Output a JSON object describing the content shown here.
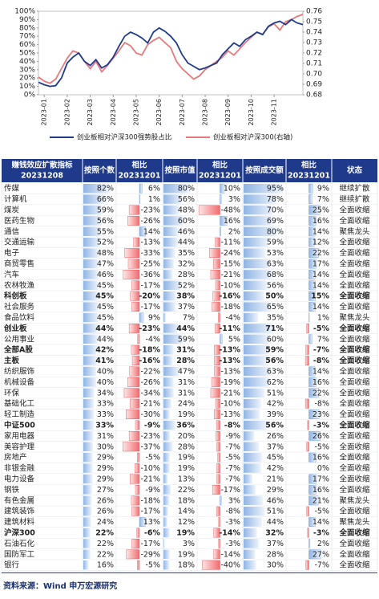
{
  "chart_data": {
    "type": "line",
    "categories": [
      null,
      "2023-01",
      null,
      null,
      null,
      "2023-02",
      null,
      null,
      null,
      "2023-03",
      null,
      null,
      null,
      "2023-04",
      null,
      null,
      null,
      "2023-05",
      null,
      null,
      null,
      "2023-06",
      null,
      null,
      null,
      "2023-07",
      null,
      null,
      null,
      "2023-08",
      null,
      null,
      null,
      "2023-09",
      null,
      null,
      null,
      "2023-10",
      null,
      null,
      null,
      "2023-11",
      null,
      null,
      null,
      null,
      null
    ],
    "series": [
      {
        "name": "创业板相对沪深300强势股占比",
        "color": "#1f3a8a",
        "values": [
          15,
          12,
          10,
          11,
          20,
          38,
          45,
          50,
          40,
          35,
          42,
          32,
          36,
          45,
          58,
          70,
          75,
          72,
          68,
          62,
          75,
          80,
          76,
          70,
          62,
          48,
          38,
          34,
          30,
          32,
          35,
          38,
          48,
          55,
          62,
          58,
          66,
          70,
          75,
          72,
          82,
          86,
          88,
          84,
          90,
          86,
          84
        ]
      },
      {
        "name": "创业板相对沪深300(右轴)",
        "color": "#e8787a",
        "axis": "y2",
        "values": [
          0.697,
          0.693,
          0.691,
          0.695,
          0.705,
          0.715,
          0.722,
          0.72,
          0.712,
          0.705,
          0.712,
          0.702,
          0.708,
          0.715,
          0.722,
          0.73,
          0.727,
          0.72,
          0.718,
          0.728,
          0.732,
          0.735,
          0.73,
          0.725,
          0.712,
          0.705,
          0.7,
          0.695,
          0.698,
          0.704,
          0.708,
          0.712,
          0.716,
          0.722,
          0.718,
          0.724,
          0.73,
          0.735,
          0.74,
          0.738,
          0.745,
          0.748,
          0.742,
          0.75,
          0.752,
          0.755,
          0.757
        ]
      }
    ],
    "ylim": [
      0,
      100
    ],
    "yticks": [
      {
        "value": 0,
        "label": "0%"
      },
      {
        "value": 10,
        "label": "10%"
      },
      {
        "value": 20,
        "label": "20%"
      },
      {
        "value": 30,
        "label": "30%"
      },
      {
        "value": 40,
        "label": "40%"
      },
      {
        "value": 50,
        "label": "50%"
      },
      {
        "value": 60,
        "label": "60%"
      },
      {
        "value": 70,
        "label": "70%"
      },
      {
        "value": 80,
        "label": "80%"
      },
      {
        "value": 90,
        "label": "90%"
      },
      {
        "value": 100,
        "label": "100%"
      }
    ],
    "y2lim": [
      0.68,
      0.76
    ],
    "y2ticks": [
      0.68,
      0.69,
      {
        "value": 0.7,
        "label": "0.70"
      },
      0.71,
      0.72,
      0.73,
      0.74,
      0.75,
      0.76
    ],
    "legend": "bottom"
  },
  "table": {
    "header": [
      [
        "赚钱效应扩散指标",
        "20231208"
      ],
      [
        "按照个数"
      ],
      [
        "相比",
        "20231201"
      ],
      [
        "按照市值"
      ],
      [
        "相比",
        "20231201"
      ],
      [
        "按照成交额"
      ],
      [
        "相比",
        "20231201"
      ],
      [
        "状态"
      ]
    ],
    "rows": [
      {
        "cells": [
          "传媒",
          "82%",
          "6%",
          "80%",
          "10%",
          "95%",
          "9%",
          "继续扩散"
        ]
      },
      {
        "cells": [
          "计算机",
          "66%",
          "1%",
          "56%",
          "3%",
          "78%",
          "7%",
          "继续扩散"
        ]
      },
      {
        "cells": [
          "煤炭",
          "59%",
          "-23%",
          "48%",
          "-48%",
          "70%",
          "25%",
          "全面收缩"
        ]
      },
      {
        "cells": [
          "医药生物",
          "56%",
          "-26%",
          "60%",
          "16%",
          "69%",
          "16%",
          "全面收缩"
        ]
      },
      {
        "cells": [
          "通信",
          "55%",
          "14%",
          "46%",
          "2%",
          "80%",
          "14%",
          "聚焦龙头"
        ]
      },
      {
        "cells": [
          "交通运输",
          "52%",
          "-13%",
          "44%",
          "-11%",
          "59%",
          "12%",
          "全面收缩"
        ]
      },
      {
        "cells": [
          "电子",
          "48%",
          "-33%",
          "35%",
          "-24%",
          "53%",
          "22%",
          "全面收缩"
        ]
      },
      {
        "cells": [
          "商贸零售",
          "47%",
          "-25%",
          "32%",
          "-15%",
          "63%",
          "17%",
          "全面收缩"
        ]
      },
      {
        "cells": [
          "汽车",
          "46%",
          "-36%",
          "28%",
          "-21%",
          "68%",
          "14%",
          "全面收缩"
        ]
      },
      {
        "cells": [
          "农林牧渔",
          "45%",
          "-17%",
          "52%",
          "-10%",
          "56%",
          "14%",
          "全面收缩"
        ]
      },
      {
        "cells": [
          "科创板",
          "45%",
          "-20%",
          "38%",
          "-16%",
          "50%",
          "15%",
          "全面收缩"
        ],
        "bold": true
      },
      {
        "cells": [
          "社会服务",
          "45%",
          "-17%",
          "37%",
          "-18%",
          "65%",
          "14%",
          "全面收缩"
        ]
      },
      {
        "cells": [
          "食品饮料",
          "45%",
          "9%",
          "7%",
          "-4%",
          "35%",
          "1%",
          "聚焦龙头"
        ]
      },
      {
        "cells": [
          "创业板",
          "44%",
          "-23%",
          "44%",
          "-11%",
          "71%",
          "-5%",
          "全面收缩"
        ],
        "bold": true
      },
      {
        "cells": [
          "公用事业",
          "44%",
          "-4%",
          "59%",
          "5%",
          "60%",
          "7%",
          "全面收缩"
        ]
      },
      {
        "cells": [
          "全部A股",
          "42%",
          "-18%",
          "31%",
          "-13%",
          "59%",
          "-7%",
          "全面收缩"
        ],
        "bold": true
      },
      {
        "cells": [
          "主板",
          "41%",
          "-16%",
          "28%",
          "-13%",
          "56%",
          "-8%",
          "全面收缩"
        ],
        "bold": true
      },
      {
        "cells": [
          "纺织服饰",
          "40%",
          "-22%",
          "47%",
          "-13%",
          "63%",
          "14%",
          "全面收缩"
        ]
      },
      {
        "cells": [
          "机械设备",
          "40%",
          "-26%",
          "31%",
          "-19%",
          "62%",
          "16%",
          "全面收缩"
        ]
      },
      {
        "cells": [
          "环保",
          "34%",
          "-34%",
          "31%",
          "-21%",
          "51%",
          "22%",
          "全面收缩"
        ]
      },
      {
        "cells": [
          "基础化工",
          "33%",
          "-21%",
          "24%",
          "-10%",
          "42%",
          "-8%",
          "全面收缩"
        ]
      },
      {
        "cells": [
          "轻工制造",
          "33%",
          "-30%",
          "19%",
          "-13%",
          "39%",
          "23%",
          "全面收缩"
        ]
      },
      {
        "cells": [
          "中证500",
          "33%",
          "-9%",
          "36%",
          "-8%",
          "56%",
          "-3%",
          "全面收缩"
        ],
        "bold": true
      },
      {
        "cells": [
          "家用电器",
          "31%",
          "-23%",
          "20%",
          "-9%",
          "26%",
          "26%",
          "全面收缩"
        ]
      },
      {
        "cells": [
          "美容护理",
          "30%",
          "-37%",
          "28%",
          "-7%",
          "37%",
          "-5%",
          "全面收缩"
        ]
      },
      {
        "cells": [
          "房地产",
          "29%",
          "-5%",
          "19%",
          "-5%",
          "45%",
          "16%",
          "全面收缩"
        ]
      },
      {
        "cells": [
          "非银金融",
          "29%",
          "-10%",
          "19%",
          "-7%",
          "42%",
          "0%",
          "全面收缩"
        ]
      },
      {
        "cells": [
          "电力设备",
          "29%",
          "-21%",
          "13%",
          "-7%",
          "21%",
          "17%",
          "全面收缩"
        ]
      },
      {
        "cells": [
          "钢铁",
          "27%",
          "-9%",
          "22%",
          "-17%",
          "29%",
          "16%",
          "全面收缩"
        ]
      },
      {
        "cells": [
          "有色金属",
          "26%",
          "-18%",
          "18%",
          "3%",
          "46%",
          "21%",
          "聚焦龙头"
        ]
      },
      {
        "cells": [
          "建筑装饰",
          "26%",
          "-17%",
          "14%",
          "-8%",
          "51%",
          "-5%",
          "全面收缩"
        ]
      },
      {
        "cells": [
          "建筑材料",
          "24%",
          "13%",
          "12%",
          "-3%",
          "44%",
          "14%",
          "聚焦龙头"
        ]
      },
      {
        "cells": [
          "沪深300",
          "22%",
          "-6%",
          "19%",
          "-14%",
          "32%",
          "-3%",
          "全面收缩"
        ],
        "bold": true
      },
      {
        "cells": [
          "石油石化",
          "22%",
          "-17%",
          "3%",
          "-3%",
          "37%",
          "2%",
          "全面收缩"
        ]
      },
      {
        "cells": [
          "国防军工",
          "22%",
          "-29%",
          "19%",
          "-14%",
          "28%",
          "27%",
          "全面收缩"
        ]
      },
      {
        "cells": [
          "银行",
          "16%",
          "-5%",
          "18%",
          "-40%",
          "30%",
          "-7%",
          "全面收缩"
        ]
      }
    ]
  },
  "footer": {
    "source": "资料来源：Wind  申万宏源研究"
  }
}
